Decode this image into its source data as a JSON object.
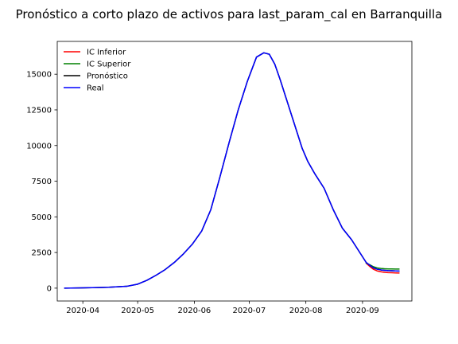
{
  "chart_data": {
    "type": "line",
    "title": "Pronóstico a corto plazo de activos para last_param_cal en Barranquilla",
    "xlabel": "",
    "ylabel": "",
    "x_axis": {
      "type": "date",
      "range": [
        "2020-03-18",
        "2020-09-28"
      ],
      "ticks": [
        "2020-04-01",
        "2020-05-01",
        "2020-06-01",
        "2020-07-01",
        "2020-08-01",
        "2020-09-01"
      ],
      "tick_labels": [
        "2020-04",
        "2020-05",
        "2020-06",
        "2020-07",
        "2020-08",
        "2020-09"
      ]
    },
    "y_axis": {
      "range": [
        -900,
        17300
      ],
      "ticks": [
        0,
        2500,
        5000,
        7500,
        10000,
        12500,
        15000
      ],
      "tick_labels": [
        "0",
        "2500",
        "5000",
        "7500",
        "10000",
        "12500",
        "15000"
      ]
    },
    "legend": {
      "position": "top-left"
    },
    "grid": false,
    "series": [
      {
        "name": "IC Inferior",
        "color": "#ff0000",
        "x": [
          "2020-09-03",
          "2020-09-05",
          "2020-09-07",
          "2020-09-09",
          "2020-09-11",
          "2020-09-13",
          "2020-09-15",
          "2020-09-17",
          "2020-09-19",
          "2020-09-21"
        ],
        "y": [
          1750,
          1520,
          1320,
          1210,
          1150,
          1110,
          1090,
          1080,
          1070,
          1060
        ]
      },
      {
        "name": "IC Superior",
        "color": "#008000",
        "x": [
          "2020-09-03",
          "2020-09-05",
          "2020-09-07",
          "2020-09-09",
          "2020-09-11",
          "2020-09-13",
          "2020-09-15",
          "2020-09-17",
          "2020-09-19",
          "2020-09-21"
        ],
        "y": [
          1760,
          1640,
          1500,
          1420,
          1380,
          1360,
          1350,
          1345,
          1340,
          1340
        ]
      },
      {
        "name": "Pronóstico",
        "color": "#000000",
        "x": [
          "2020-03-22",
          "2020-04-01",
          "2020-04-15",
          "2020-04-25",
          "2020-05-01",
          "2020-05-06",
          "2020-05-11",
          "2020-05-16",
          "2020-05-21",
          "2020-05-26",
          "2020-05-31",
          "2020-06-05",
          "2020-06-10",
          "2020-06-15",
          "2020-06-20",
          "2020-06-25",
          "2020-06-30",
          "2020-07-05",
          "2020-07-09",
          "2020-07-12",
          "2020-07-15",
          "2020-07-18",
          "2020-07-21",
          "2020-07-24",
          "2020-07-27",
          "2020-07-30",
          "2020-08-02",
          "2020-08-06",
          "2020-08-11",
          "2020-08-16",
          "2020-08-21",
          "2020-08-26",
          "2020-08-31",
          "2020-09-03",
          "2020-09-05",
          "2020-09-07",
          "2020-09-09",
          "2020-09-11",
          "2020-09-13",
          "2020-09-15",
          "2020-09-17",
          "2020-09-19",
          "2020-09-21"
        ],
        "y": [
          0,
          20,
          60,
          130,
          280,
          550,
          900,
          1300,
          1800,
          2400,
          3100,
          4000,
          5500,
          7800,
          10200,
          12500,
          14500,
          16200,
          16500,
          16400,
          15700,
          14600,
          13400,
          12200,
          11000,
          9800,
          8900,
          8000,
          7000,
          5500,
          4200,
          3400,
          2400,
          1800,
          1600,
          1420,
          1330,
          1280,
          1250,
          1230,
          1220,
          1210,
          1200
        ]
      },
      {
        "name": "Real",
        "color": "#0000ff",
        "x": [
          "2020-03-22",
          "2020-04-01",
          "2020-04-15",
          "2020-04-25",
          "2020-05-01",
          "2020-05-06",
          "2020-05-11",
          "2020-05-16",
          "2020-05-21",
          "2020-05-26",
          "2020-05-31",
          "2020-06-05",
          "2020-06-10",
          "2020-06-15",
          "2020-06-20",
          "2020-06-25",
          "2020-06-30",
          "2020-07-05",
          "2020-07-09",
          "2020-07-12",
          "2020-07-15",
          "2020-07-18",
          "2020-07-21",
          "2020-07-24",
          "2020-07-27",
          "2020-07-30",
          "2020-08-02",
          "2020-08-06",
          "2020-08-11",
          "2020-08-16",
          "2020-08-21",
          "2020-08-26",
          "2020-08-31",
          "2020-09-03",
          "2020-09-05",
          "2020-09-07",
          "2020-09-09",
          "2020-09-11",
          "2020-09-13",
          "2020-09-15",
          "2020-09-17",
          "2020-09-19",
          "2020-09-21"
        ],
        "y": [
          0,
          20,
          60,
          130,
          280,
          550,
          900,
          1300,
          1800,
          2400,
          3100,
          4000,
          5500,
          7800,
          10200,
          12500,
          14500,
          16200,
          16500,
          16400,
          15700,
          14600,
          13400,
          12200,
          11000,
          9800,
          8900,
          8000,
          7000,
          5500,
          4200,
          3400,
          2400,
          1800,
          1600,
          1420,
          1330,
          1280,
          1250,
          1230,
          1220,
          1210,
          1200
        ]
      }
    ]
  }
}
